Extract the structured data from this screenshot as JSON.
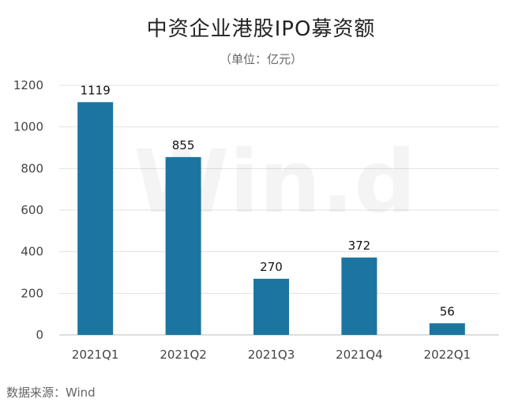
{
  "chart_data": {
    "type": "bar",
    "title": "中资企业港股IPO募资额",
    "subtitle": "（单位：亿元）",
    "categories": [
      "2021Q1",
      "2021Q2",
      "2021Q3",
      "2021Q4",
      "2022Q1"
    ],
    "values": [
      1119,
      855,
      270,
      372,
      56
    ],
    "xlabel": "",
    "ylabel": "",
    "ylim": [
      0,
      1200
    ],
    "yticks": [
      0,
      200,
      400,
      600,
      800,
      1000,
      1200
    ],
    "grid": true,
    "legend": "none",
    "bar_color": "#1b75a0",
    "watermark": "Win.d",
    "source": "数据来源：Wind"
  }
}
